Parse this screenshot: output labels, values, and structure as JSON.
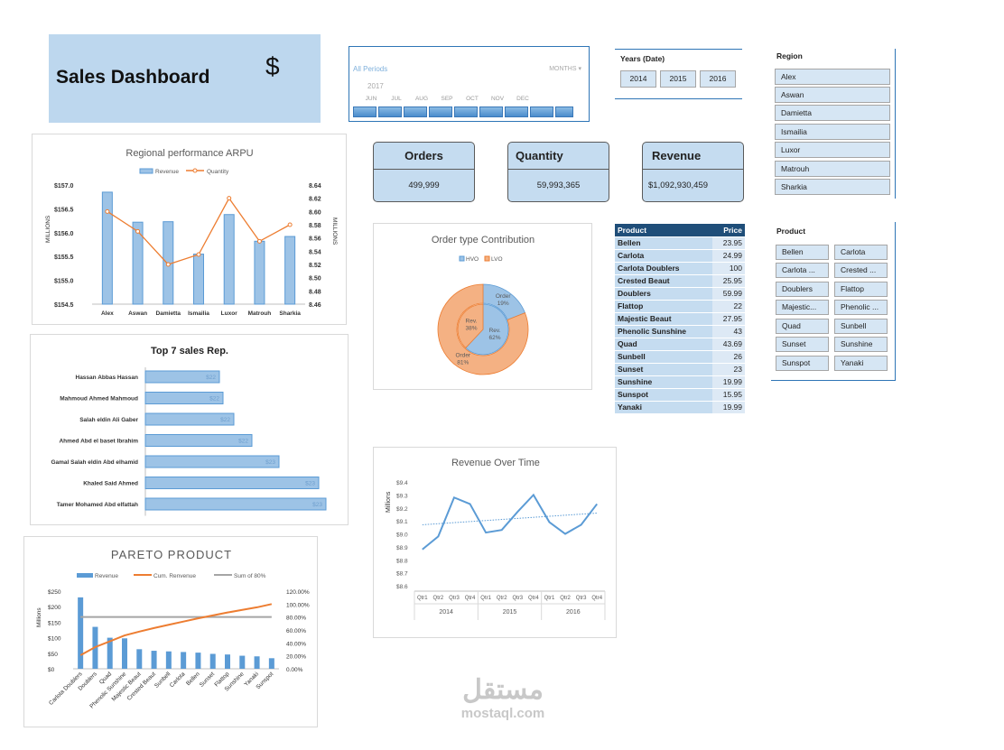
{
  "title": {
    "text": "Sales Dashboard",
    "dollar": "$"
  },
  "timeline": {
    "all_periods": "All Periods",
    "unit": "MONTHS ▾",
    "year": "2017",
    "months": [
      "JUN",
      "JUL",
      "AUG",
      "SEP",
      "OCT",
      "NOV",
      "DEC"
    ]
  },
  "years_slicer": {
    "title": "Years (Date)",
    "items": [
      "2014",
      "2015",
      "2016"
    ]
  },
  "region_slicer": {
    "title": "Region",
    "items": [
      "Alex",
      "Aswan",
      "Damietta",
      "Ismailia",
      "Luxor",
      "Matrouh",
      "Sharkia"
    ]
  },
  "product_slicer": {
    "title": "Product",
    "items": [
      "Bellen",
      "Carlota",
      "Carlota ...",
      "Crested ...",
      "Doublers",
      "Flattop",
      "Majestic...",
      "Phenolic ...",
      "Quad",
      "Sunbell",
      "Sunset",
      "Sunshine",
      "Sunspot",
      "Yanaki"
    ]
  },
  "kpis": {
    "orders": {
      "label": "Orders",
      "value": "499,999"
    },
    "quantity": {
      "label": "Quantity",
      "value": "59,993,365"
    },
    "revenue": {
      "label": "Revenue",
      "value": "$1,092,930,459"
    }
  },
  "price_table": {
    "headers": [
      "Product",
      "Price"
    ],
    "rows": [
      [
        "Bellen",
        "23.95"
      ],
      [
        "Carlota",
        "24.99"
      ],
      [
        "Carlota Doublers",
        "100"
      ],
      [
        "Crested Beaut",
        "25.95"
      ],
      [
        "Doublers",
        "59.99"
      ],
      [
        "Flattop",
        "22"
      ],
      [
        "Majestic Beaut",
        "27.95"
      ],
      [
        "Phenolic Sunshine",
        "43"
      ],
      [
        "Quad",
        "43.69"
      ],
      [
        "Sunbell",
        "26"
      ],
      [
        "Sunset",
        "23"
      ],
      [
        "Sunshine",
        "19.99"
      ],
      [
        "Sunspot",
        "15.95"
      ],
      [
        "Yanaki",
        "19.99"
      ]
    ]
  },
  "colors": {
    "blue": "#5b9bd5",
    "orange": "#ed7d31",
    "gray": "#a5a5a5",
    "dark_blue": "#1f4e79",
    "light_blue": "#bdd7ee"
  },
  "watermark": {
    "arabic": "مستقل",
    "latin": "mostaql.com"
  },
  "chart_data": [
    {
      "id": "arpu",
      "type": "bar",
      "title": "Regional performance ARPU",
      "categories": [
        "Alex",
        "Aswan",
        "Damietta",
        "Ismailia",
        "Luxor",
        "Matrouh",
        "Sharkia"
      ],
      "series": [
        {
          "name": "Revenue",
          "axis": "left",
          "values": [
            156.85,
            156.22,
            156.23,
            155.55,
            156.38,
            155.82,
            155.92
          ]
        },
        {
          "name": "Quantity",
          "axis": "right",
          "kind": "line",
          "values": [
            8.6,
            8.57,
            8.52,
            8.535,
            8.62,
            8.555,
            8.58
          ]
        }
      ],
      "ylabel": "MILLIONS",
      "y2label": "MILLIONS",
      "ylim": [
        154.5,
        157.0
      ],
      "y2lim": [
        8.46,
        8.64
      ],
      "yticks": [
        "$157.0",
        "$156.5",
        "$156.0",
        "$155.5",
        "$155.0",
        "$154.5"
      ],
      "y2ticks": [
        "8.64",
        "8.62",
        "8.60",
        "8.58",
        "8.56",
        "8.54",
        "8.52",
        "8.50",
        "8.48",
        "8.46"
      ],
      "legend": "top"
    },
    {
      "id": "reps",
      "type": "bar",
      "orientation": "horizontal",
      "title": "Top 7 sales Rep.",
      "categories": [
        "Hassan Abbas Hassan",
        "Mahmoud Ahmed Mahmoud",
        "Salah eldin Ali Gaber",
        "Ahmed Abd el baset Ibrahim",
        "Gamal Salah eldin Abd elhamid",
        "Khaled Said Ahmed",
        "Tamer Mohamed Abd elfattah"
      ],
      "values": [
        22,
        22,
        22,
        22,
        23,
        23,
        23
      ],
      "bar_lengths": [
        0.41,
        0.43,
        0.49,
        0.59,
        0.74,
        0.96,
        1.0
      ],
      "data_labels": [
        "$22",
        "$22",
        "$22",
        "$22",
        "$23",
        "$23",
        "$23"
      ]
    },
    {
      "id": "pareto",
      "type": "bar",
      "title": "PARETO PRODUCT",
      "categories": [
        "Carlota Doublers",
        "Doublers",
        "Quad",
        "Phenolic Sunshine",
        "Majestic Beaut",
        "Crested Beaut",
        "Sunbell",
        "Carlota",
        "Bellen",
        "Sunset",
        "Flattop",
        "Sunshine",
        "Yanaki",
        "Sunspot"
      ],
      "series": [
        {
          "name": "Revenue",
          "axis": "left",
          "values": [
            230,
            135,
            100,
            98,
            63,
            58,
            56,
            54,
            52,
            48,
            46,
            42,
            40,
            34
          ]
        },
        {
          "name": "Cum. Renvenue",
          "axis": "right",
          "kind": "line",
          "values": [
            21,
            33.5,
            42.5,
            51.5,
            57.5,
            63,
            68,
            73,
            78,
            82.5,
            87,
            91,
            95,
            100
          ]
        },
        {
          "name": "Sum of 80%",
          "axis": "right",
          "kind": "line",
          "values": [
            80,
            80,
            80,
            80,
            80,
            80,
            80,
            80,
            80,
            80,
            80,
            80,
            80,
            80
          ]
        }
      ],
      "ylabel": "Millions",
      "ylim": [
        0,
        250
      ],
      "y2lim": [
        0,
        120
      ],
      "yticks": [
        "$250",
        "$200",
        "$150",
        "$100",
        "$50",
        "$0"
      ],
      "y2ticks": [
        "120.00%",
        "100.00%",
        "80.00%",
        "60.00%",
        "40.00%",
        "20.00%",
        "0.00%"
      ],
      "legend": "top"
    },
    {
      "id": "ordertype",
      "type": "pie",
      "title": "Order type Contribution",
      "legend_entries": [
        "HVO",
        "LVO"
      ],
      "outer": [
        {
          "name": "HVO",
          "label": "Order\n19%",
          "value": 19
        },
        {
          "name": "LVO",
          "label": "Order\n81%",
          "value": 81
        }
      ],
      "inner": [
        {
          "name": "HVO",
          "label": "Rev.\n62%",
          "value": 62
        },
        {
          "name": "LVO",
          "label": "Rev.\n38%",
          "value": 38
        }
      ]
    },
    {
      "id": "revtime",
      "type": "line",
      "title": "Revenue Over Time",
      "ylabel": "Millions",
      "categories": [
        "Qtr1",
        "Qtr2",
        "Qtr3",
        "Qtr4",
        "Qtr1",
        "Qtr2",
        "Qtr3",
        "Qtr4",
        "Qtr1",
        "Qtr2",
        "Qtr3",
        "Qtr4"
      ],
      "groups": [
        "2014",
        "2015",
        "2016"
      ],
      "values": [
        8.88,
        8.98,
        9.28,
        9.23,
        9.01,
        9.03,
        9.17,
        9.3,
        9.09,
        9.0,
        9.07,
        9.23
      ],
      "trend": [
        9.07,
        9.16
      ],
      "ylim": [
        8.6,
        9.4
      ],
      "yticks": [
        "$9.4",
        "$9.3",
        "$9.2",
        "$9.1",
        "$9.0",
        "$8.9",
        "$8.8",
        "$8.7",
        "$8.6"
      ]
    }
  ]
}
